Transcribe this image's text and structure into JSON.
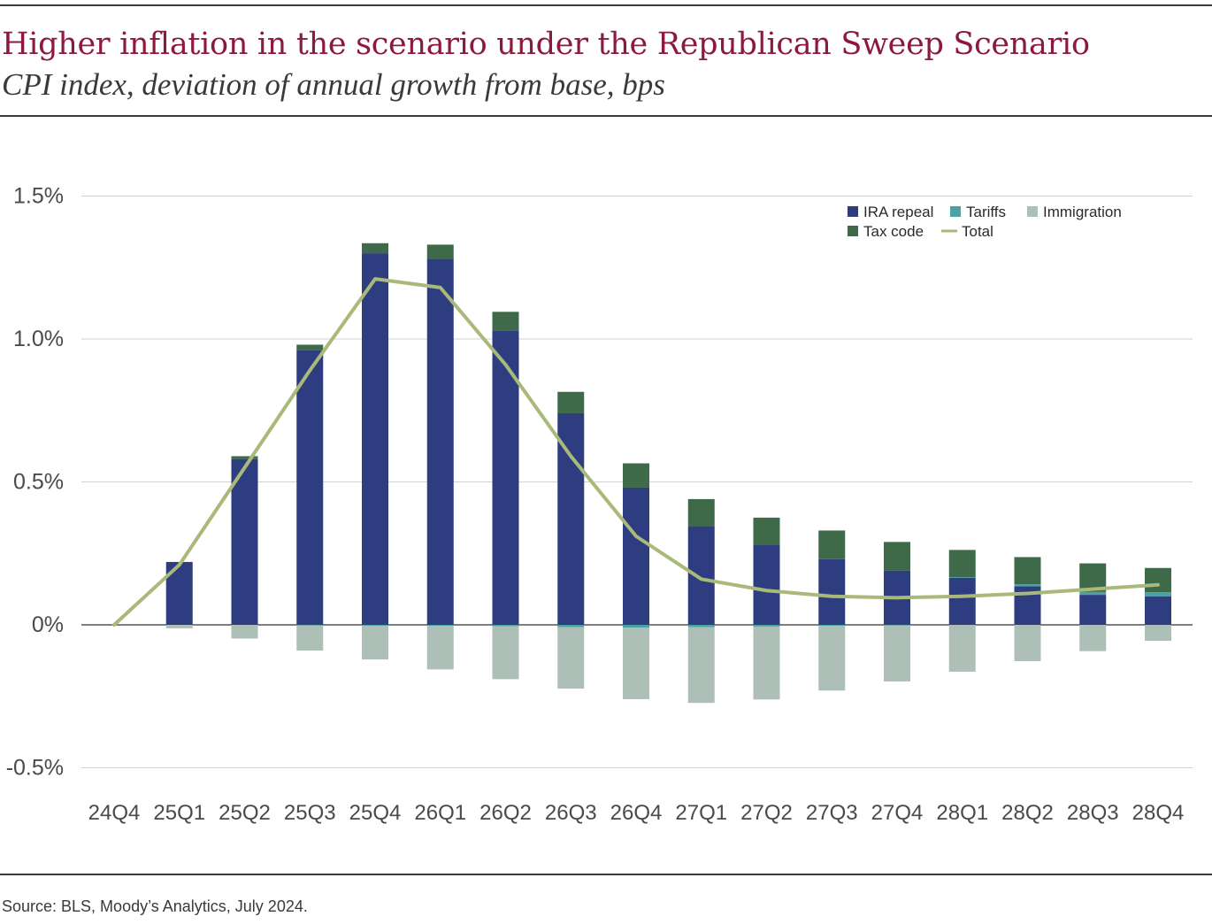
{
  "header": {
    "title": "Higher inflation in the scenario under the Republican Sweep Scenario",
    "subtitle": "CPI index, deviation of annual growth from base, bps"
  },
  "footer": {
    "source": "Source: BLS, Moody’s Analytics, July 2024."
  },
  "colors": {
    "ira": "#2e3d80",
    "tariffs": "#4aa3a3",
    "immigration": "#aebfb8",
    "tax": "#3e6a4a",
    "total": "#a9b97a",
    "title": "#8b1a3c"
  },
  "chart_data": {
    "type": "bar",
    "stacked": true,
    "title": "",
    "xlabel": "",
    "ylabel": "",
    "ylim": [
      -0.5,
      1.5
    ],
    "yticks": [
      -0.5,
      0,
      0.5,
      1.0,
      1.5
    ],
    "ytick_labels": [
      "-0.5%",
      "0%",
      "0.5%",
      "1.0%",
      "1.5%"
    ],
    "grid": true,
    "legend_position": "top-right",
    "categories": [
      "24Q4",
      "25Q1",
      "25Q2",
      "25Q3",
      "25Q4",
      "26Q1",
      "26Q2",
      "26Q3",
      "26Q4",
      "27Q1",
      "27Q2",
      "27Q3",
      "27Q4",
      "28Q1",
      "28Q2",
      "28Q3",
      "28Q4"
    ],
    "series": [
      {
        "name": "IRA repeal",
        "type": "bar",
        "color": "#2e3d80",
        "values": [
          0,
          0.22,
          0.58,
          0.96,
          1.3,
          1.28,
          1.03,
          0.74,
          0.48,
          0.345,
          0.28,
          0.23,
          0.19,
          0.165,
          0.135,
          0.105,
          0.1
        ]
      },
      {
        "name": "Tariffs",
        "type": "bar",
        "color": "#4aa3a3",
        "values": [
          0,
          0,
          0,
          -0.002,
          -0.003,
          -0.004,
          -0.005,
          -0.008,
          -0.01,
          -0.008,
          -0.006,
          -0.004,
          -0.002,
          0.002,
          0.007,
          0.01,
          0.014
        ]
      },
      {
        "name": "Immigration",
        "type": "bar",
        "color": "#aebfb8",
        "values": [
          0,
          -0.012,
          -0.048,
          -0.088,
          -0.118,
          -0.152,
          -0.185,
          -0.215,
          -0.25,
          -0.265,
          -0.255,
          -0.226,
          -0.196,
          -0.164,
          -0.127,
          -0.092,
          -0.056
        ]
      },
      {
        "name": "Tax code",
        "type": "bar",
        "color": "#3e6a4a",
        "values": [
          0,
          0,
          0.01,
          0.02,
          0.035,
          0.05,
          0.065,
          0.075,
          0.085,
          0.095,
          0.095,
          0.1,
          0.1,
          0.095,
          0.095,
          0.1,
          0.085
        ]
      },
      {
        "name": "Total",
        "type": "line",
        "color": "#a9b97a",
        "values": [
          0,
          0.21,
          0.55,
          0.89,
          1.21,
          1.18,
          0.91,
          0.59,
          0.31,
          0.16,
          0.12,
          0.1,
          0.095,
          0.1,
          0.11,
          0.125,
          0.14
        ]
      }
    ]
  }
}
